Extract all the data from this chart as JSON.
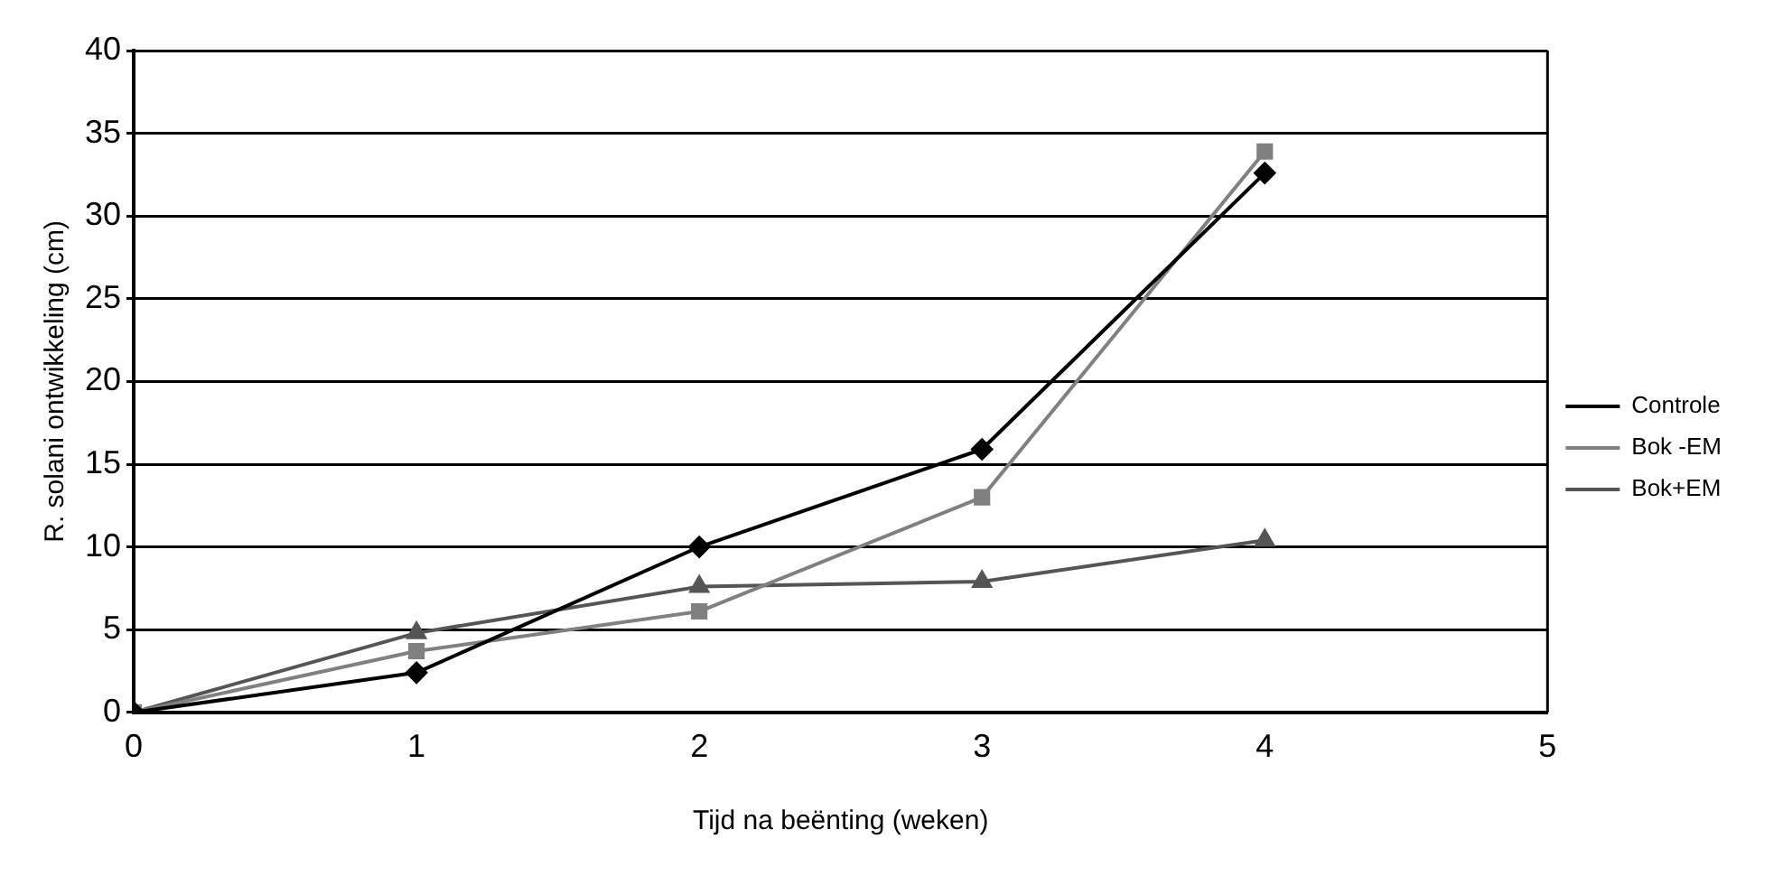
{
  "chart_data": {
    "type": "line",
    "xlabel": "Tijd na beënting (weken)",
    "ylabel": "R. solani ontwikkeling (cm)",
    "x": [
      0,
      1,
      2,
      3,
      4
    ],
    "xlim": [
      0,
      5
    ],
    "xticks": [
      0,
      1,
      2,
      3,
      4,
      5
    ],
    "ylim": [
      0,
      40
    ],
    "yticks": [
      0,
      5,
      10,
      15,
      20,
      25,
      30,
      35,
      40
    ],
    "grid": "y",
    "legend": "right",
    "line_style": "solid",
    "series": [
      {
        "name": "Controle",
        "color": "#000000",
        "marker": "diamond",
        "values": [
          0,
          2.4,
          10.0,
          15.9,
          32.6
        ]
      },
      {
        "name": "Bok -EM",
        "color": "#808080",
        "marker": "square",
        "values": [
          0,
          3.7,
          6.1,
          13.0,
          33.9
        ]
      },
      {
        "name": "Bok+EM",
        "color": "#555555",
        "marker": "triangle",
        "values": [
          0,
          4.8,
          7.6,
          7.9,
          10.4
        ]
      }
    ]
  }
}
